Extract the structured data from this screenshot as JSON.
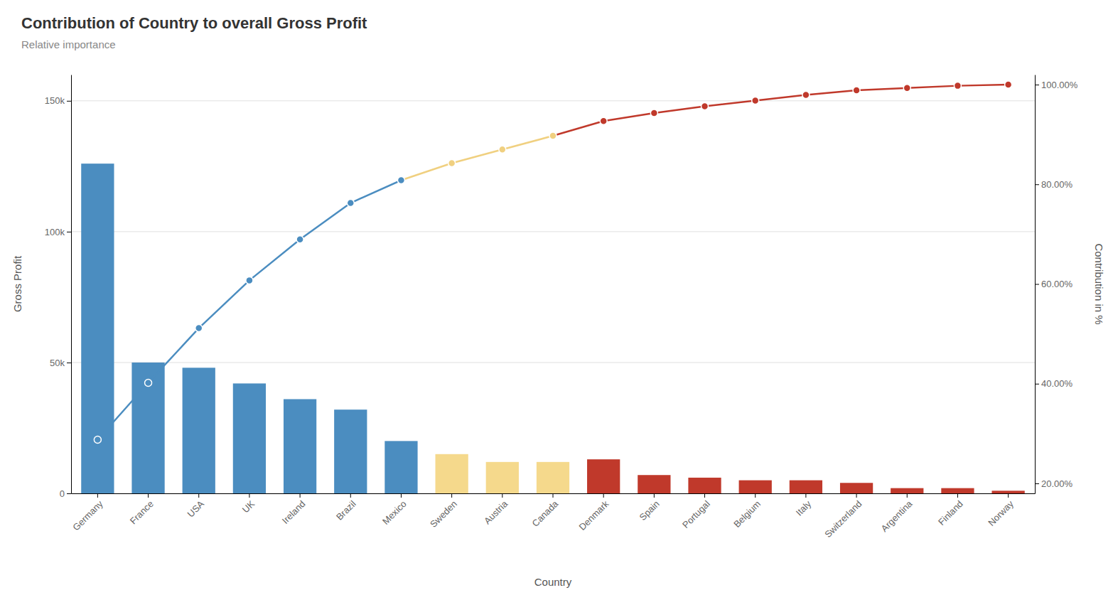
{
  "chart_data": {
    "type": "bar",
    "title": "Contribution of Country to overall Gross Profit",
    "subtitle": "Relative importance",
    "x_label": "Country",
    "y_label": "Gross Profit",
    "y2_label": "Contribution in %",
    "categories": [
      "Germany",
      "France",
      "USA",
      "UK",
      "Ireland",
      "Brazil",
      "Mexico",
      "Sweden",
      "Austria",
      "Canada",
      "Denmark",
      "Spain",
      "Portugal",
      "Belgium",
      "Italy",
      "Switzerland",
      "Argentina",
      "Finland",
      "Norway"
    ],
    "series": [
      {
        "type": "bar",
        "values": [
          126000,
          50000,
          48000,
          42000,
          36000,
          32000,
          20000,
          15000,
          12000,
          12000,
          13000,
          7000,
          6000,
          5000,
          5000,
          4000,
          2000,
          2000,
          1000
        ],
        "colors": [
          "#4b8dc0",
          "#4b8dc0",
          "#4b8dc0",
          "#4b8dc0",
          "#4b8dc0",
          "#4b8dc0",
          "#4b8dc0",
          "#f5d98c",
          "#f5d98c",
          "#f5d98c",
          "#c0392b",
          "#c0392b",
          "#c0392b",
          "#c0392b",
          "#c0392b",
          "#c0392b",
          "#c0392b",
          "#c0392b",
          "#c0392b"
        ]
      },
      {
        "type": "line",
        "axis": "y2",
        "marker": "circle",
        "values": [
          0.287671232876712,
          0.401826484018265,
          0.511415525114155,
          0.607305936073059,
          0.689497716894977,
          0.762557077625571,
          0.808219178082192,
          0.842465753424658,
          0.86986301369863,
          0.897260273972603,
          0.926940639269406,
          0.942922374429224,
          0.95662100456621,
          0.968036529680365,
          0.979452054794521,
          0.988584474885845,
          0.993150684931507,
          0.997716894977169,
          1
        ],
        "colors": [
          "#4b8dc0",
          "#4b8dc0",
          "#4b8dc0",
          "#4b8dc0",
          "#4b8dc0",
          "#4b8dc0",
          "#4b8dc0",
          "#f0d080",
          "#f0d080",
          "#f0d080",
          "#c0392b",
          "#c0392b",
          "#c0392b",
          "#c0392b",
          "#c0392b",
          "#c0392b",
          "#c0392b",
          "#c0392b",
          "#c0392b"
        ]
      }
    ],
    "ylim": [
      0,
      160000
    ],
    "yticks": [
      0,
      {
        "value": 50000,
        "label": "50k"
      },
      {
        "value": 100000,
        "label": "100k"
      },
      {
        "value": 150000,
        "label": "150k"
      }
    ],
    "y2lim": [
      0.18,
      1.02
    ],
    "y2ticks": [
      {
        "value": 0.2,
        "label": "20.00%"
      },
      {
        "value": 0.4,
        "label": "40.00%"
      },
      {
        "value": 0.6,
        "label": "60.00%"
      },
      {
        "value": 0.8,
        "label": "80.00%"
      },
      {
        "value": 1.0,
        "label": "100.00%"
      }
    ],
    "grid": true
  }
}
